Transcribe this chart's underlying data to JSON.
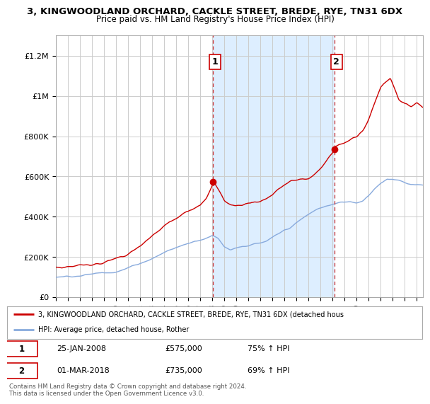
{
  "title1": "3, KINGWOODLAND ORCHARD, CACKLE STREET, BREDE, RYE, TN31 6DX",
  "title2": "Price paid vs. HM Land Registry's House Price Index (HPI)",
  "ylim": [
    0,
    1300000
  ],
  "xlim_start": 1995.0,
  "xlim_end": 2025.5,
  "yticks": [
    0,
    200000,
    400000,
    600000,
    800000,
    1000000,
    1200000
  ],
  "ytick_labels": [
    "£0",
    "£200K",
    "£400K",
    "£600K",
    "£800K",
    "£1M",
    "£1.2M"
  ],
  "legend_line1": "3, KINGWOODLAND ORCHARD, CACKLE STREET, BREDE, RYE, TN31 6DX (detached hous",
  "legend_line2": "HPI: Average price, detached house, Rother",
  "marker1_x": 2008.07,
  "marker1_y": 575000,
  "marker1_label": "1",
  "marker2_x": 2018.17,
  "marker2_y": 735000,
  "marker2_label": "2",
  "shade_color": "#ddeeff",
  "table": [
    [
      "1",
      "25-JAN-2008",
      "£575,000",
      "75% ↑ HPI"
    ],
    [
      "2",
      "01-MAR-2018",
      "£735,000",
      "69% ↑ HPI"
    ]
  ],
  "footnote": "Contains HM Land Registry data © Crown copyright and database right 2024.\nThis data is licensed under the Open Government Licence v3.0.",
  "line_color_red": "#cc0000",
  "line_color_blue": "#88aadd",
  "marker_color_red": "#cc0000",
  "background_color": "#ffffff",
  "grid_color": "#cccccc",
  "vline_color": "#cc3333"
}
